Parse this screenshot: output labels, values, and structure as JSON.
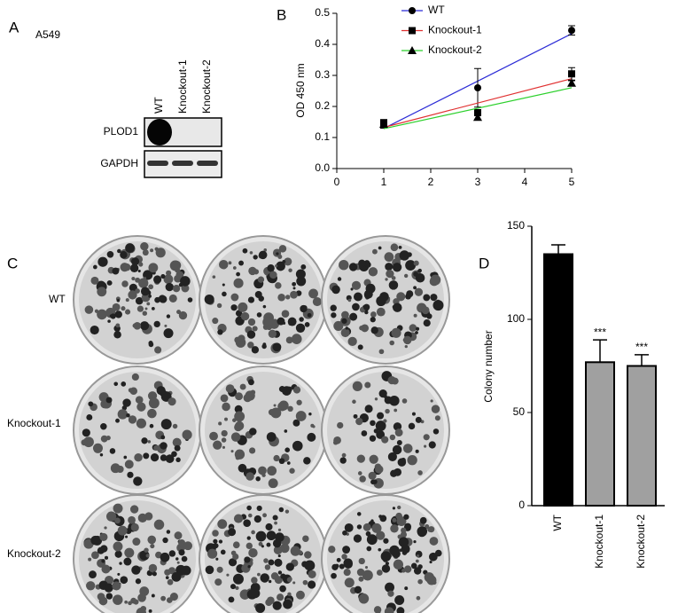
{
  "panel_labels": [
    "A",
    "B",
    "C",
    "D"
  ],
  "blot": {
    "cell_line": "A549",
    "lanes": [
      "WT",
      "Knockout-1",
      "Knockout-2"
    ],
    "proteins": [
      "PLOD1",
      "GAPDH"
    ]
  },
  "colony": {
    "rows": [
      "WT",
      "Knockout-1",
      "Knockout-2"
    ]
  },
  "chart_data": [
    {
      "type": "line",
      "y_label": "OD 450 nm",
      "x": [
        1,
        3,
        5
      ],
      "xlim": [
        0,
        5
      ],
      "xticks": [
        0,
        1,
        2,
        3,
        4,
        5
      ],
      "ylim": [
        0,
        0.5
      ],
      "yticks": [
        {
          "value": 0,
          "label": "0.0"
        },
        0.1,
        0.2,
        0.3,
        0.4,
        0.5
      ],
      "legend": "top-left",
      "series": [
        {
          "name": "WT",
          "color": "#2b2bd6",
          "marker": "circle",
          "values": [
            0.14,
            0.26,
            0.445
          ],
          "errors": [
            0.01,
            0.062,
            0.015
          ]
        },
        {
          "name": "Knockout-1",
          "color": "#e03030",
          "marker": "square",
          "values": [
            0.148,
            0.18,
            0.305
          ],
          "errors": [
            0.008,
            0.01,
            0.02
          ]
        },
        {
          "name": "Knockout-2",
          "color": "#2bd02b",
          "marker": "triangle",
          "values": [
            0.143,
            0.165,
            0.275
          ],
          "errors": [
            0.005,
            0.008,
            0.008
          ]
        }
      ]
    },
    {
      "type": "bar",
      "y_label": "Colony number",
      "categories": [
        "WT",
        "Knockout-1",
        "Knockout-2"
      ],
      "values": [
        135,
        77,
        75
      ],
      "errors": [
        5,
        12,
        6
      ],
      "colors": [
        "#000000",
        "#a0a0a0",
        "#a0a0a0"
      ],
      "annotations": [
        null,
        "***",
        "***"
      ],
      "ylim": [
        0,
        150
      ],
      "yticks": [
        0,
        50,
        100,
        150
      ]
    }
  ]
}
